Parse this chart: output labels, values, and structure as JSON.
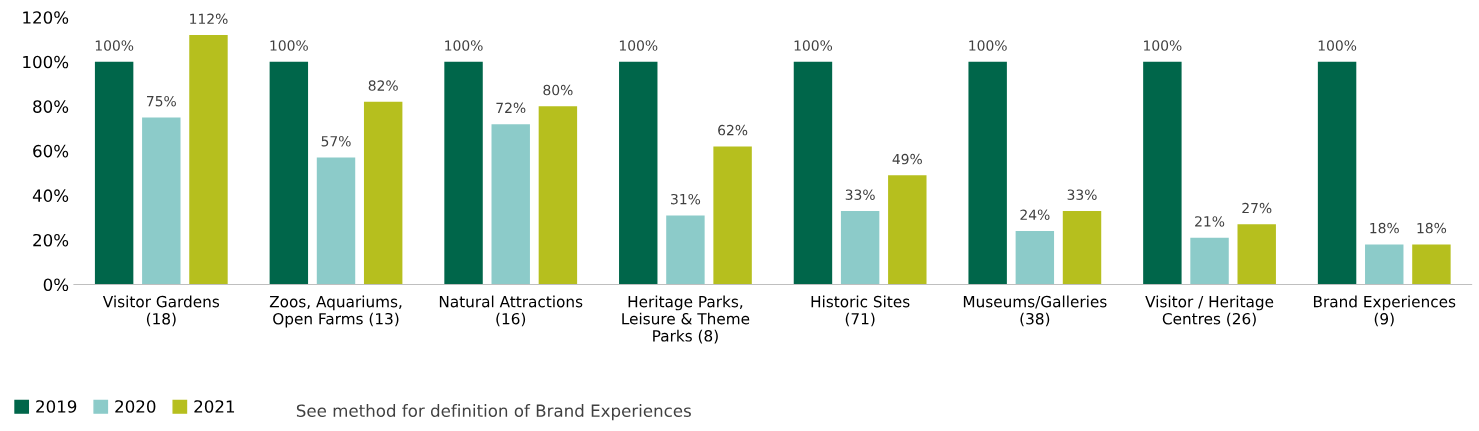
{
  "chart_data": {
    "type": "bar",
    "categories": [
      "Visitor Gardens\n(18)",
      "Zoos, Aquariums,\nOpen Farms (13)",
      "Natural Attractions\n(16)",
      "Heritage Parks,\nLeisure & Theme\nParks (8)",
      "Historic Sites\n(71)",
      "Museums/Galleries\n(38)",
      "Visitor / Heritage\nCentres (26)",
      "Brand Experiences\n(9)"
    ],
    "series": [
      {
        "name": "2019",
        "color": "#00664a",
        "values": [
          100,
          100,
          100,
          100,
          100,
          100,
          100,
          100
        ],
        "value_labels": [
          "100%",
          "100%",
          "100%",
          "100%",
          "100%",
          "100%",
          "100%",
          "100%"
        ]
      },
      {
        "name": "2020",
        "color": "#8ccbc9",
        "values": [
          75,
          57,
          72,
          31,
          33,
          24,
          21,
          18
        ],
        "value_labels": [
          "75%",
          "57%",
          "72%",
          "31%",
          "33%",
          "24%",
          "21%",
          "18%"
        ]
      },
      {
        "name": "2021",
        "color": "#b6bf1e",
        "values": [
          112,
          82,
          80,
          62,
          49,
          33,
          27,
          18
        ],
        "value_labels": [
          "112%",
          "82%",
          "80%",
          "62%",
          "49%",
          "33%",
          "27%",
          "18%"
        ]
      }
    ],
    "ylim": [
      0,
      120
    ],
    "yticks": [
      {
        "value": 0,
        "label": "0%"
      },
      {
        "value": 20,
        "label": "20%"
      },
      {
        "value": 40,
        "label": "40%"
      },
      {
        "value": 60,
        "label": "60%"
      },
      {
        "value": 80,
        "label": "80%"
      },
      {
        "value": 100,
        "label": "100%"
      },
      {
        "value": 120,
        "label": "120%"
      }
    ],
    "grid": false,
    "legend": "bottom left",
    "annotations": [
      "See method for definition of Brand Experiences"
    ]
  }
}
